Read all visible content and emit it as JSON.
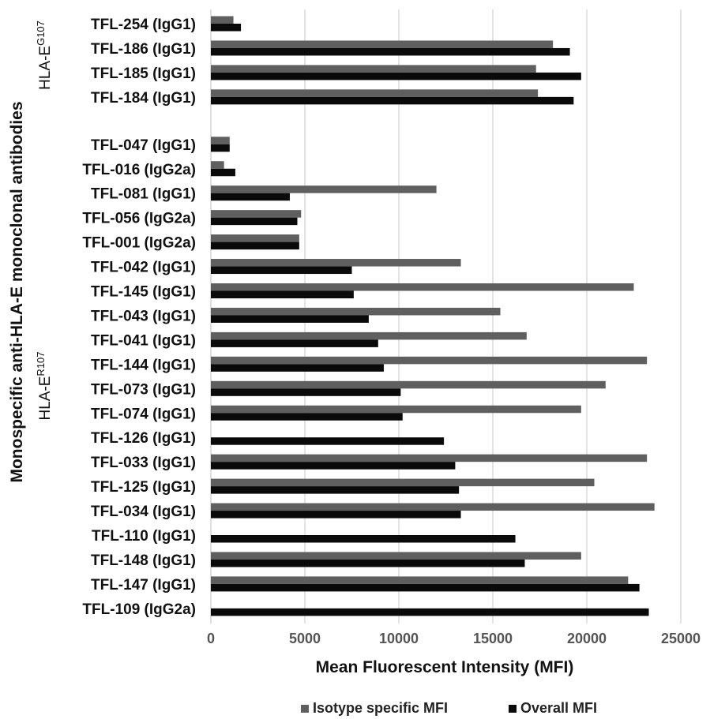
{
  "chart_data": {
    "type": "bar",
    "orientation": "horizontal",
    "xlabel": "Mean Fluorescent Intensity (MFI)",
    "ylabel": "Monospecific  anti-HLA-E monoclonal antibodies",
    "xlim": [
      0,
      25000
    ],
    "xticks": [
      "0",
      "5000",
      "10000",
      "15000",
      "20000",
      "25000"
    ],
    "grid": true,
    "legend_position": "bottom",
    "groups": [
      {
        "label_base": "HLA-E",
        "label_sup": "G107",
        "categories": [
          "TFL-254 (IgG1)",
          "TFL-186 (IgG1)",
          "TFL-185 (IgG1)",
          "TFL-184 (IgG1)"
        ]
      },
      {
        "label_base": "HLA-E",
        "label_sup": "R107",
        "categories": [
          "TFL-047 (IgG1)",
          "TFL-016 (IgG2a)",
          "TFL-081 (IgG1)",
          "TFL-056 (IgG2a)",
          "TFL-001 (IgG2a)",
          "TFL-042 (IgG1)",
          "TFL-145 (IgG1)",
          "TFL-043 (IgG1)",
          "TFL-041 (IgG1)",
          "TFL-144 (IgG1)",
          "TFL-073 (IgG1)",
          "TFL-074 (IgG1)",
          "TFL-126 (IgG1)",
          "TFL-033 (IgG1)",
          "TFL-125 (IgG1)",
          "TFL-034 (IgG1)",
          "TFL-110 (IgG1)",
          "TFL-148 (IgG1)",
          "TFL-147 (IgG1)",
          "TFL-109 (IgG2a)"
        ]
      }
    ],
    "categories": [
      "TFL-254 (IgG1)",
      "TFL-186 (IgG1)",
      "TFL-185 (IgG1)",
      "TFL-184 (IgG1)",
      "TFL-047 (IgG1)",
      "TFL-016 (IgG2a)",
      "TFL-081 (IgG1)",
      "TFL-056 (IgG2a)",
      "TFL-001 (IgG2a)",
      "TFL-042 (IgG1)",
      "TFL-145 (IgG1)",
      "TFL-043 (IgG1)",
      "TFL-041 (IgG1)",
      "TFL-144 (IgG1)",
      "TFL-073 (IgG1)",
      "TFL-074 (IgG1)",
      "TFL-126 (IgG1)",
      "TFL-033 (IgG1)",
      "TFL-125 (IgG1)",
      "TFL-034 (IgG1)",
      "TFL-110 (IgG1)",
      "TFL-148 (IgG1)",
      "TFL-147 (IgG1)",
      "TFL-109 (IgG2a)"
    ],
    "series": [
      {
        "name": "Isotype specific MFI",
        "color": "#5f5f5f",
        "values": [
          1200,
          18200,
          17300,
          17400,
          1000,
          700,
          12000,
          4800,
          4700,
          13300,
          22500,
          15400,
          16800,
          23200,
          21000,
          19700,
          null,
          23200,
          20400,
          23600,
          null,
          19700,
          22200,
          null
        ]
      },
      {
        "name": "Overall MFI",
        "color": "#0a0a0a",
        "values": [
          1600,
          19100,
          19700,
          19300,
          1000,
          1300,
          4200,
          4600,
          4700,
          7500,
          7600,
          8400,
          8900,
          9200,
          10100,
          10200,
          12400,
          13000,
          13200,
          13300,
          16200,
          16700,
          22800,
          23300
        ]
      }
    ]
  }
}
